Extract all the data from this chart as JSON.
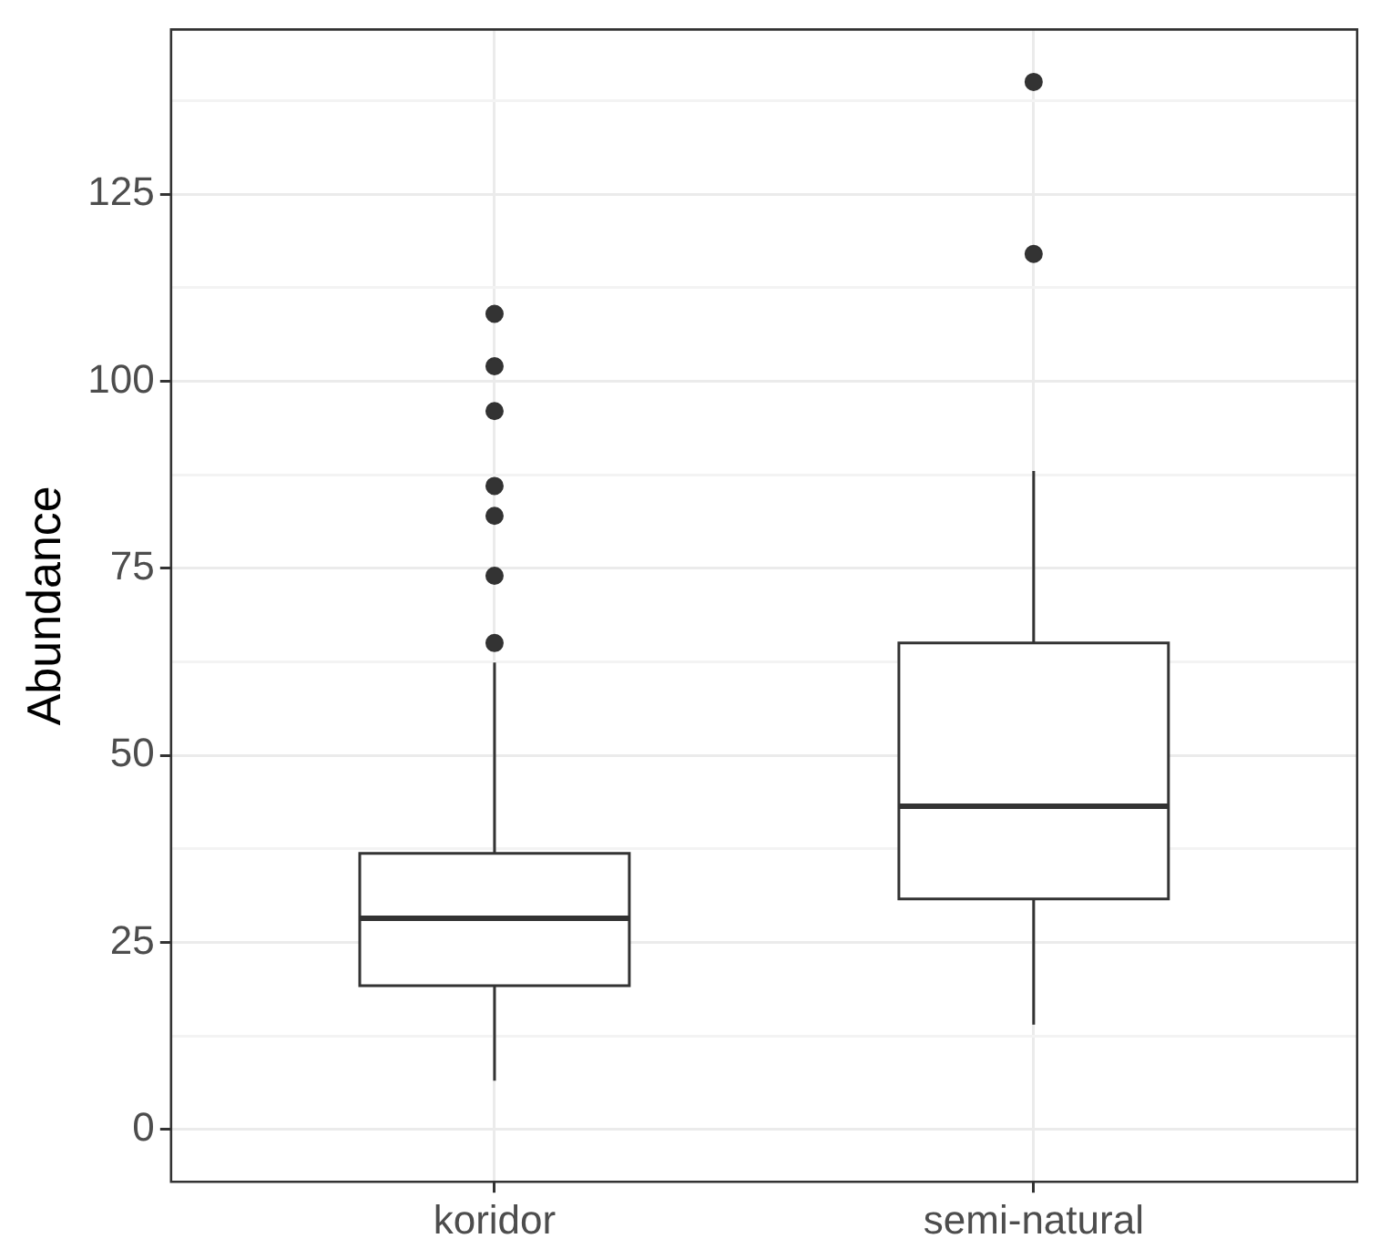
{
  "chart_data": {
    "type": "box",
    "ylabel": "Abundance",
    "categories": [
      "koridor",
      "semi-natural"
    ],
    "boxes": [
      {
        "low": 6.5,
        "q1": 19.2,
        "median": 28.2,
        "q3": 36.9,
        "high": 62.4,
        "outliers": [
          65,
          74,
          82,
          86,
          96,
          102,
          109
        ]
      },
      {
        "low": 14,
        "q1": 30.8,
        "median": 43.2,
        "q3": 65,
        "high": 88,
        "outliers": [
          117,
          140
        ]
      }
    ],
    "ylim": [
      -7,
      147
    ],
    "yticks": [
      0,
      {
        "value": 12.5,
        "label": null
      },
      25,
      {
        "value": 37.5,
        "label": null
      },
      50,
      {
        "value": 62.5,
        "label": null
      },
      75,
      {
        "value": 87.5,
        "label": null
      },
      100,
      {
        "value": 112.5,
        "label": null
      },
      125,
      {
        "value": 137.5,
        "label": null
      }
    ],
    "grid": true,
    "legend": false
  }
}
